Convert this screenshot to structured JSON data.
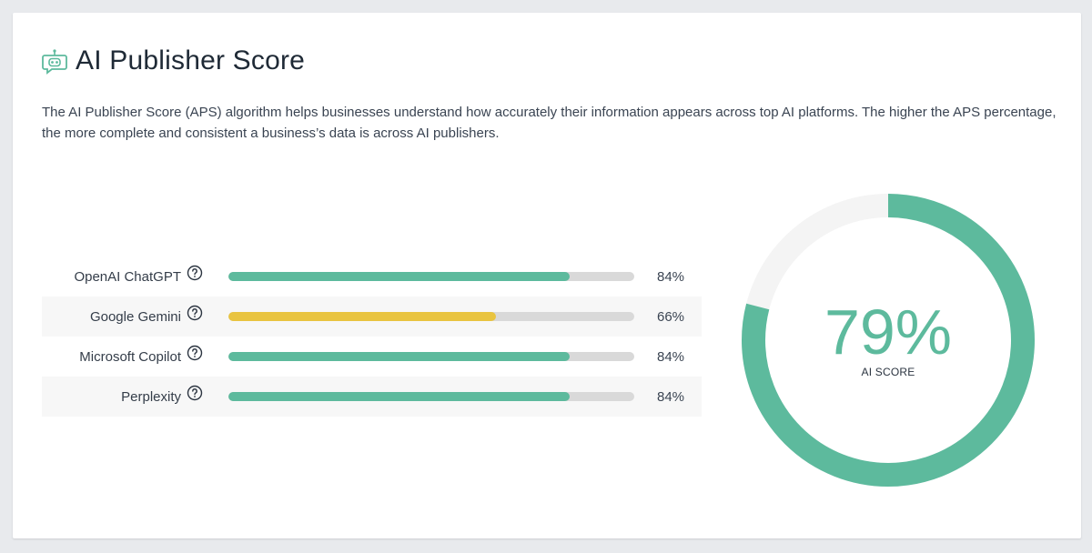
{
  "header": {
    "icon": "robot-chat-icon",
    "title": "AI Publisher Score"
  },
  "description": "The AI Publisher Score (APS) algorithm helps businesses understand how accurately their information appears across top AI platforms. The higher the APS percentage, the more complete and consistent a business’s data is across AI publishers.",
  "colors": {
    "accent": "#5dba9d",
    "warning": "#e9c440",
    "track": "#d9d9d9",
    "gauge_track": "#f4f4f4"
  },
  "platforms": [
    {
      "name": "OpenAI ChatGPT",
      "percent": 84,
      "percent_label": "84%",
      "color": "#5dba9d"
    },
    {
      "name": "Google Gemini",
      "percent": 66,
      "percent_label": "66%",
      "color": "#e9c440"
    },
    {
      "name": "Microsoft Copilot",
      "percent": 84,
      "percent_label": "84%",
      "color": "#5dba9d"
    },
    {
      "name": "Perplexity",
      "percent": 84,
      "percent_label": "84%",
      "color": "#5dba9d"
    }
  ],
  "gauge": {
    "value": 79,
    "value_label": "79%",
    "caption": "AI SCORE"
  }
}
